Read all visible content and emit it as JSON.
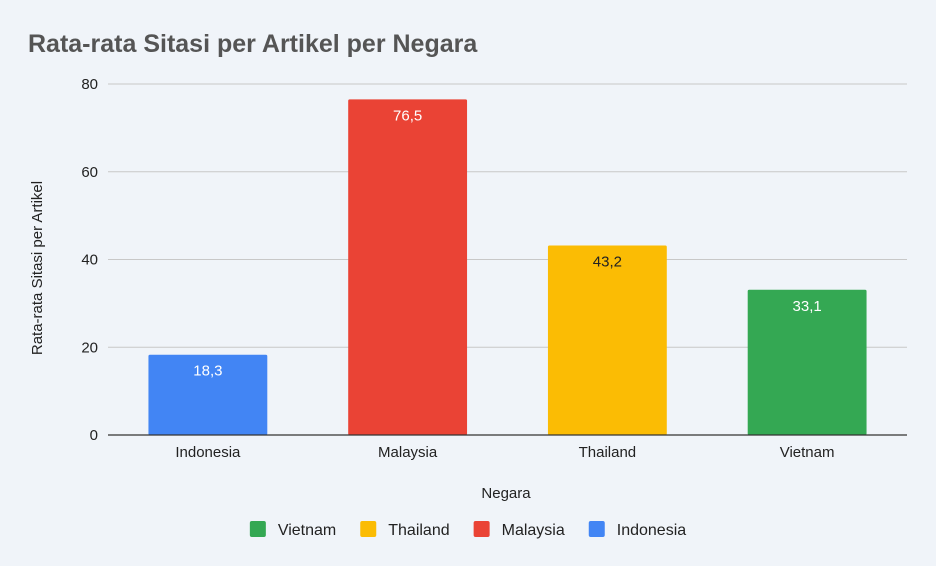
{
  "chart_data": {
    "type": "bar",
    "title": "Rata-rata Sitasi per Artikel per Negara",
    "xlabel": "Negara",
    "ylabel": "Rata-rata Sitasi per Artikel",
    "categories": [
      "Indonesia",
      "Malaysia",
      "Thailand",
      "Vietnam"
    ],
    "values": [
      18.3,
      76.5,
      43.2,
      33.1
    ],
    "data_labels": [
      "18,3",
      "76,5",
      "43,2",
      "33,1"
    ],
    "colors": [
      "#4285f4",
      "#ea4335",
      "#fbbc04",
      "#34a853"
    ],
    "label_colors": [
      "#ffffff",
      "#ffffff",
      "#222222",
      "#ffffff"
    ],
    "ylim": [
      0,
      80
    ],
    "yticks": [
      0,
      20,
      40,
      60,
      80
    ],
    "grid": true,
    "legend": {
      "position": "bottom",
      "items": [
        {
          "label": "Vietnam",
          "color": "#34a853"
        },
        {
          "label": "Thailand",
          "color": "#fbbc04"
        },
        {
          "label": "Malaysia",
          "color": "#ea4335"
        },
        {
          "label": "Indonesia",
          "color": "#4285f4"
        }
      ]
    }
  }
}
